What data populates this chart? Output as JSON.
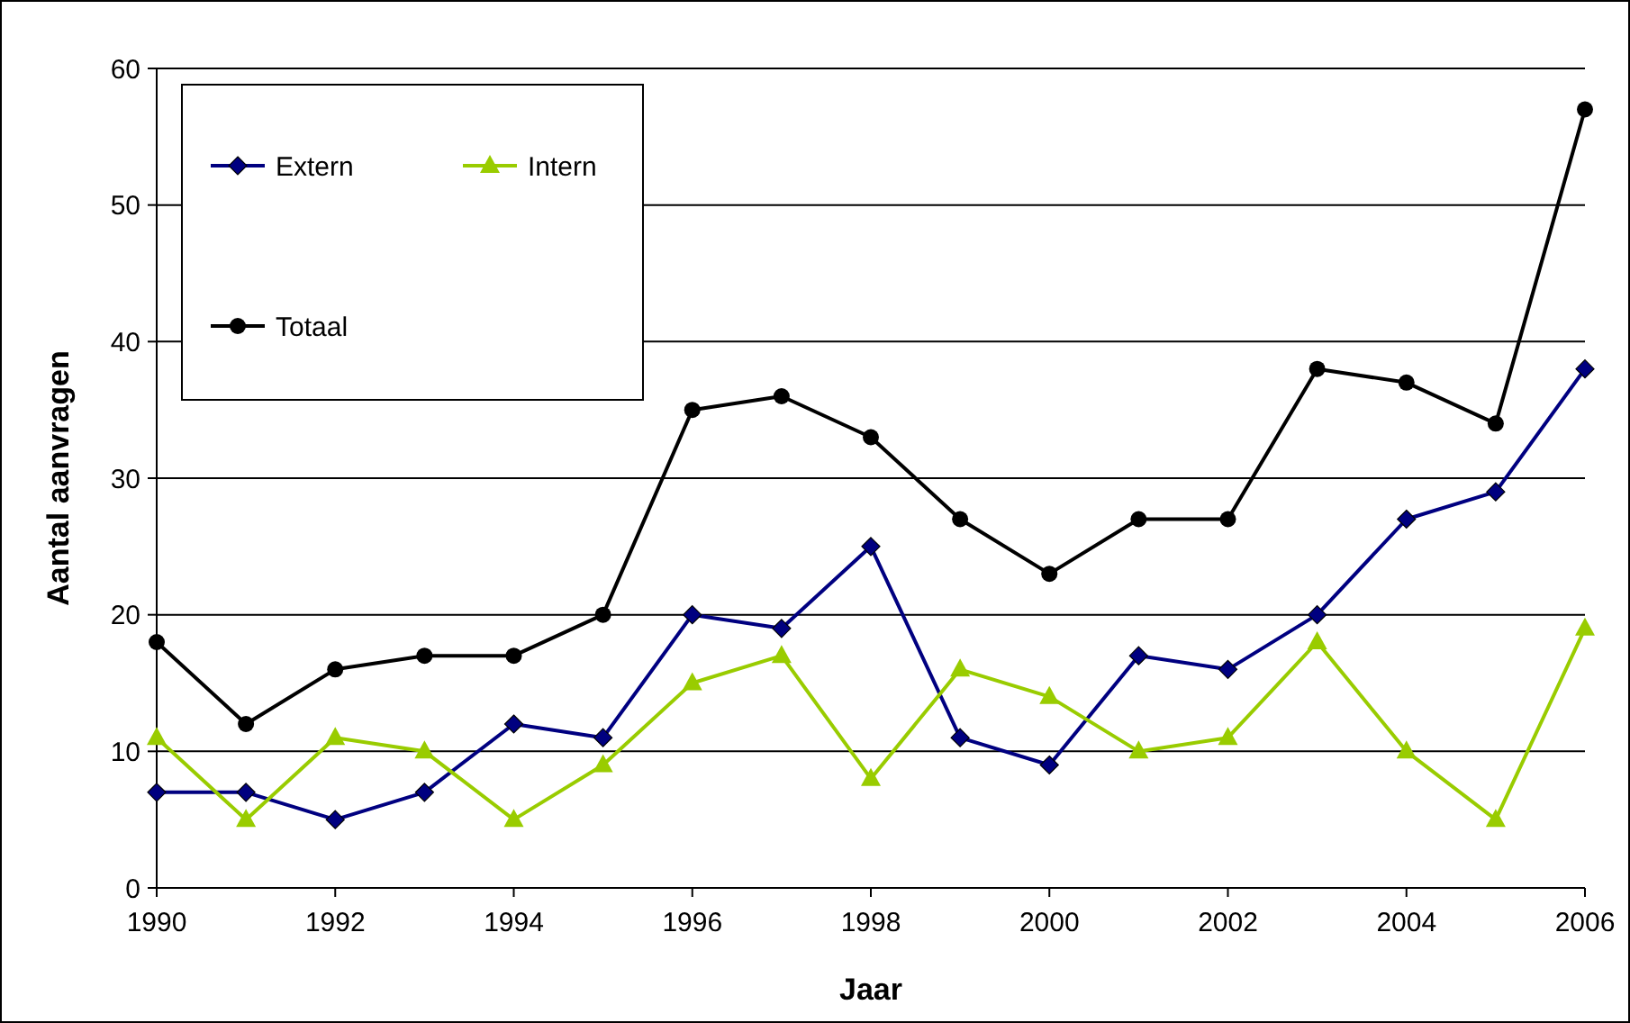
{
  "chart_data": {
    "type": "line",
    "xlabel": "Jaar",
    "ylabel": "Aantal aanvragen",
    "x": [
      1990,
      1991,
      1992,
      1993,
      1994,
      1995,
      1996,
      1997,
      1998,
      1999,
      2000,
      2001,
      2002,
      2003,
      2004,
      2005,
      2006
    ],
    "series": [
      {
        "name": "Extern",
        "color": "#000080",
        "marker": "diamond",
        "values": [
          7,
          7,
          5,
          7,
          12,
          11,
          20,
          19,
          25,
          11,
          9,
          17,
          16,
          20,
          27,
          29,
          38
        ]
      },
      {
        "name": "Intern",
        "color": "#99cc00",
        "marker": "triangle",
        "values": [
          11,
          5,
          11,
          10,
          5,
          9,
          15,
          17,
          8,
          16,
          14,
          10,
          11,
          18,
          10,
          5,
          19
        ]
      },
      {
        "name": "Totaal",
        "color": "#000000",
        "marker": "circle",
        "values": [
          18,
          12,
          16,
          17,
          17,
          20,
          35,
          36,
          33,
          27,
          23,
          27,
          27,
          38,
          37,
          34,
          57
        ]
      }
    ],
    "xlim": [
      1990,
      2006
    ],
    "xticks": [
      1990,
      1992,
      1994,
      1996,
      1998,
      2000,
      2002,
      2004,
      2006
    ],
    "ylim": [
      0,
      60
    ],
    "yticks": [
      0,
      10,
      20,
      30,
      40,
      50,
      60
    ],
    "grid": "y",
    "legend": "top left",
    "line_style": "solid"
  }
}
